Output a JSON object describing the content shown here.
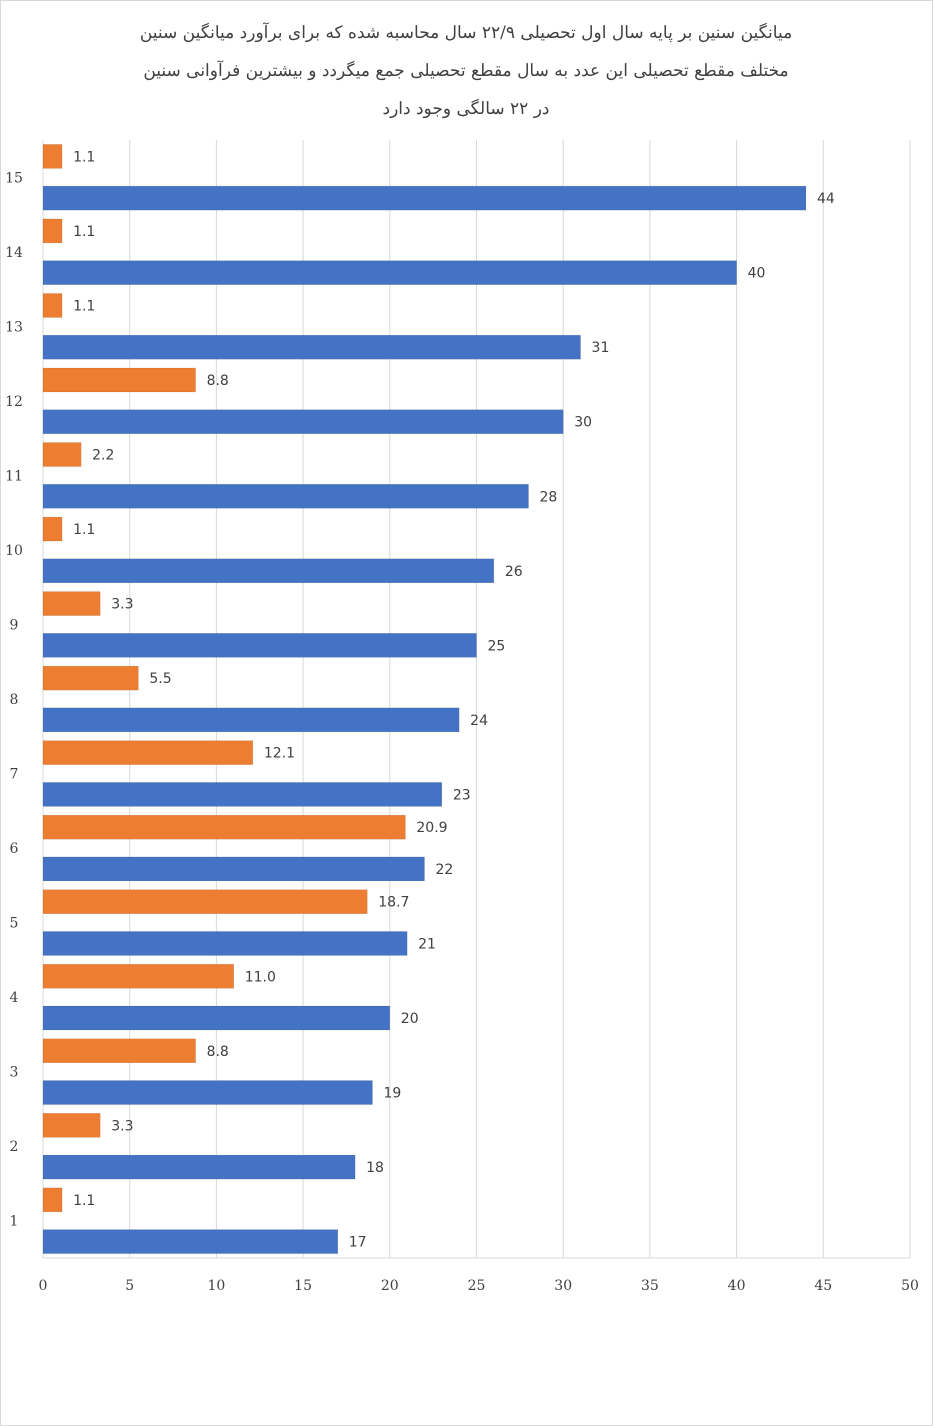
{
  "chart_data": {
    "type": "bar",
    "orientation": "horizontal",
    "title_lines": [
      "میانگین سنین بر پایه سال اول تحصیلی ۲۲/۹ سال محاسبه شده که برای برآورد میانگین سنین",
      "مختلف مقطع تحصیلی این عدد به سال مقطع تحصیلی جمع میگردد و بیشترین فرآوانی سنین",
      "در ۲۲ سالگی وجود دارد"
    ],
    "categories": [
      "1",
      "2",
      "3",
      "4",
      "5",
      "6",
      "7",
      "8",
      "9",
      "10",
      "11",
      "12",
      "13",
      "14",
      "15"
    ],
    "series": [
      {
        "values": [
          17,
          18,
          19,
          20,
          21,
          22,
          23,
          24,
          25,
          26,
          28,
          30,
          31,
          40,
          44
        ],
        "labels": [
          "17",
          "18",
          "19",
          "20",
          "21",
          "22",
          "23",
          "24",
          "25",
          "26",
          "28",
          "30",
          "31",
          "40",
          "44"
        ],
        "color": "#4472c4"
      },
      {
        "values": [
          1.1,
          3.3,
          8.8,
          11.0,
          18.7,
          20.9,
          12.1,
          5.5,
          3.3,
          1.1,
          2.2,
          8.8,
          1.1,
          1.1,
          1.1
        ],
        "labels": [
          "1.1",
          "3.3",
          "8.8",
          "11.0",
          "18.7",
          "20.9",
          "12.1",
          "5.5",
          "3.3",
          "1.1",
          "2.2",
          "8.8",
          "1.1",
          "1.1",
          "1.1"
        ],
        "color": "#ed7d31"
      }
    ],
    "xlim": [
      0,
      50
    ],
    "xticks": [
      0,
      5,
      10,
      15,
      20,
      25,
      30,
      35,
      40,
      45,
      50
    ],
    "grid": "vertical",
    "legend": "none",
    "gridColor": "#d9d9d9",
    "textColor": "#404040"
  }
}
